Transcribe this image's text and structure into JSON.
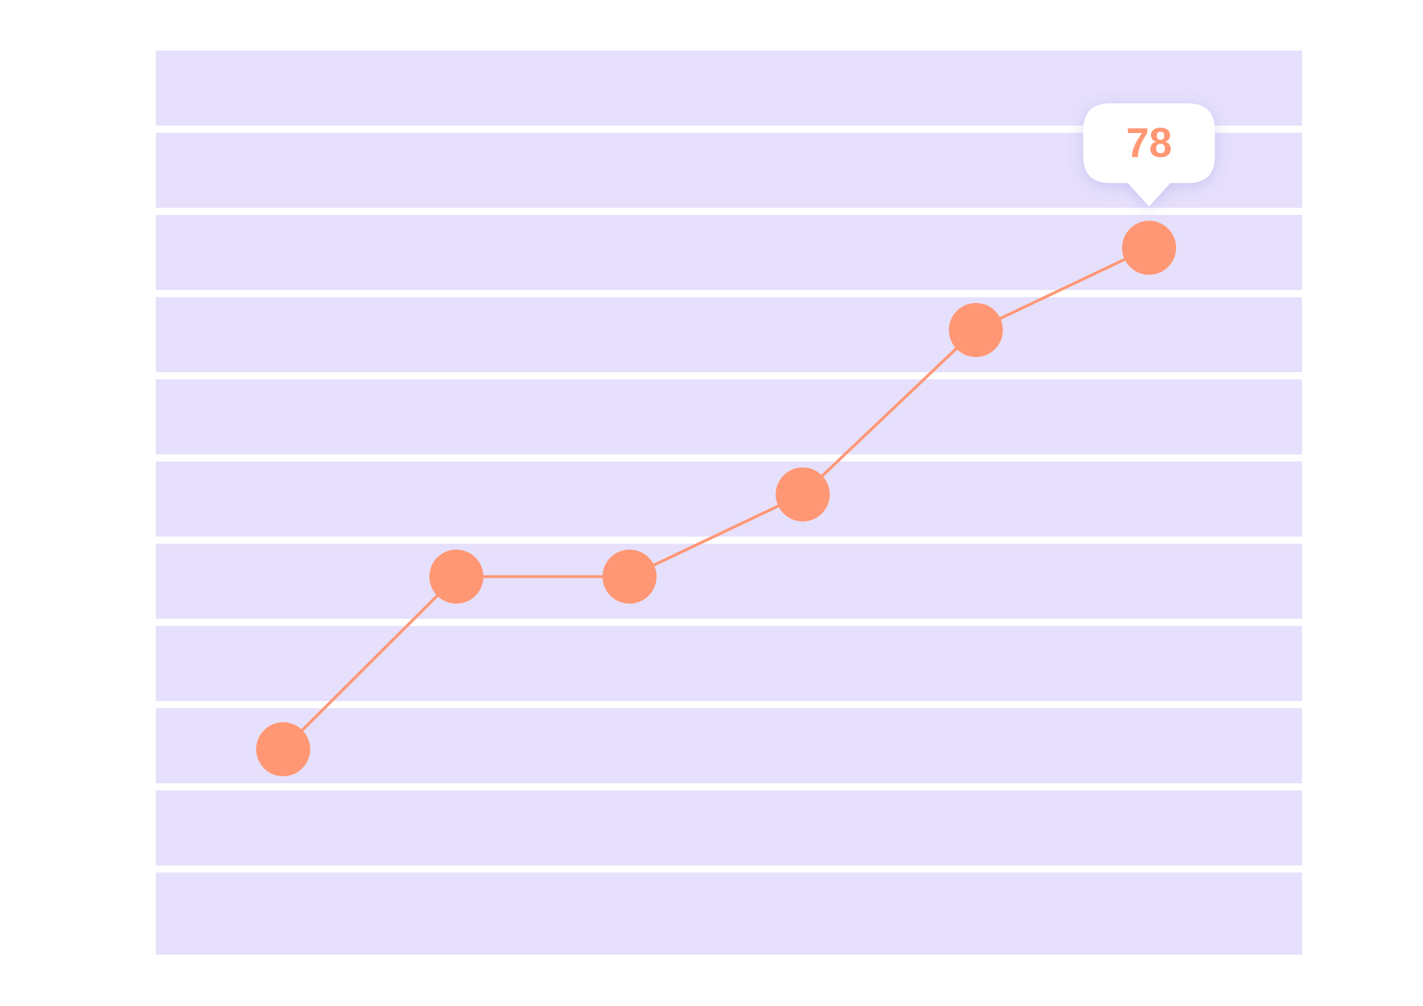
{
  "chart_data": {
    "type": "line",
    "categories": [
      null,
      null,
      null,
      null,
      null,
      null
    ],
    "series": [
      {
        "color": "#ff9774",
        "values": [
          17,
          38,
          38,
          48,
          68,
          78
        ]
      }
    ],
    "ylim": [
      -8,
      102
    ],
    "band_color": "#e6e0fc"
  }
}
